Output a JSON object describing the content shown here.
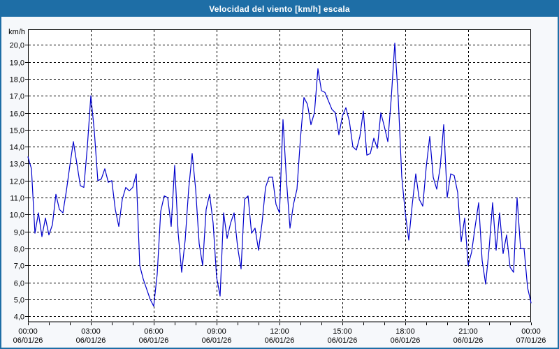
{
  "window": {
    "title": "Velocidad del viento [km/h] escala"
  },
  "colors": {
    "title_bar": "#1e6ea6",
    "window_border": "#1e6ea6",
    "window_background": "#f6f8fb",
    "plot_background": "#ffffff",
    "grid": "#000000",
    "axis": "#000000",
    "line": "#0000cc",
    "title_text": "#ffffff",
    "tick_text": "#000000"
  },
  "chart_data": {
    "type": "line",
    "title": "Velocidad del viento [km/h] escala",
    "ylabel": "km/h",
    "xlabel": "",
    "ylim": [
      4,
      20
    ],
    "xlim_hours": [
      0,
      24
    ],
    "grid": "dashed",
    "legend": "none",
    "y_ticks": {
      "values": [
        4,
        5,
        6,
        7,
        8,
        9,
        10,
        11,
        12,
        13,
        14,
        15,
        16,
        17,
        18,
        19,
        20
      ],
      "labels": [
        "4,0",
        "5,0",
        "6,0",
        "7,0",
        "8,0",
        "9,0",
        "10,0",
        "11,0",
        "12,0",
        "13,0",
        "14,0",
        "15,0",
        "16,0",
        "17,0",
        "18,0",
        "19,0",
        "20,0"
      ]
    },
    "x_ticks": [
      {
        "hour": 0,
        "time": "00:00",
        "date": "06/01/26"
      },
      {
        "hour": 3,
        "time": "03:00",
        "date": "06/01/26"
      },
      {
        "hour": 6,
        "time": "06:00",
        "date": "06/01/26"
      },
      {
        "hour": 9,
        "time": "09:00",
        "date": "06/01/26"
      },
      {
        "hour": 12,
        "time": "12:00",
        "date": "06/01/26"
      },
      {
        "hour": 15,
        "time": "15:00",
        "date": "06/01/26"
      },
      {
        "hour": 18,
        "time": "18:00",
        "date": "06/01/26"
      },
      {
        "hour": 21,
        "time": "21:00",
        "date": "06/01/26"
      },
      {
        "hour": 24,
        "time": "00:00",
        "date": "07/01/26"
      }
    ],
    "x_minor_tick_every_hours": 1,
    "series": [
      {
        "name": "Velocidad del viento",
        "unit": "km/h",
        "color": "#0000cc",
        "start_time": "00:00",
        "interval_minutes": 10,
        "values": [
          13.4,
          12.7,
          8.9,
          10.1,
          8.7,
          9.8,
          8.8,
          9.4,
          11.2,
          10.3,
          10.1,
          11.4,
          12.9,
          14.3,
          13.0,
          11.7,
          11.6,
          14.0,
          17.0,
          14.9,
          12.0,
          12.1,
          12.7,
          11.9,
          12.0,
          10.3,
          9.3,
          10.9,
          11.6,
          11.4,
          11.6,
          12.4,
          7.0,
          6.2,
          5.6,
          5.0,
          4.6,
          6.5,
          10.2,
          11.1,
          11.0,
          9.3,
          12.9,
          8.9,
          6.6,
          8.5,
          11.5,
          13.6,
          11.5,
          8.3,
          7.0,
          10.3,
          11.2,
          9.5,
          6.3,
          5.2,
          10.1,
          8.6,
          9.5,
          10.1,
          8.1,
          6.8,
          10.9,
          11.1,
          8.9,
          9.2,
          7.9,
          9.5,
          11.6,
          12.2,
          12.2,
          10.6,
          10.1,
          15.6,
          12.0,
          9.2,
          10.6,
          11.5,
          14.5,
          16.9,
          16.5,
          15.3,
          16.0,
          18.6,
          17.3,
          17.2,
          16.7,
          16.2,
          16.0,
          14.7,
          15.8,
          16.3,
          15.5,
          14.0,
          13.8,
          14.6,
          16.1,
          13.5,
          13.6,
          14.5,
          13.9,
          16.0,
          15.2,
          14.3,
          16.9,
          20.1,
          16.8,
          12.2,
          10.1,
          8.5,
          10.6,
          12.4,
          10.9,
          10.5,
          12.8,
          14.6,
          12.2,
          11.5,
          12.8,
          15.3,
          11.0,
          12.4,
          12.3,
          11.3,
          8.4,
          9.8,
          7.0,
          7.8,
          9.3,
          10.7,
          7.3,
          5.9,
          8.0,
          10.7,
          7.9,
          10.1,
          7.7,
          8.8,
          6.9,
          6.6,
          11.0,
          8.0,
          8.0,
          5.7,
          4.8
        ]
      }
    ]
  }
}
